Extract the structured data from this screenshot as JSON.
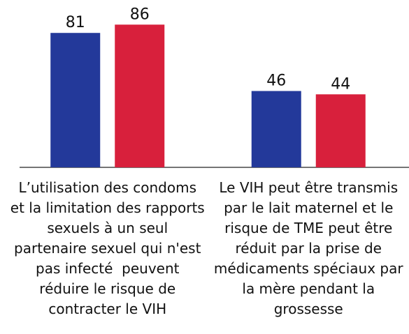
{
  "chart_data": {
    "type": "bar",
    "categories": [
      "L’utilisation des condoms et la limitation des rapports sexuels à un seul partenaire sexuel qui n'est pas infecté  peuvent réduire le risque de contracter le VIH",
      "Le VIH peut être transmis par le lait maternel et le risque de TME peut être réduit par la prise de médicaments spéciaux par la mère pendant la grossesse"
    ],
    "series": [
      {
        "color": "#23399a",
        "values": [
          81,
          46
        ]
      },
      {
        "color": "#d8203c",
        "values": [
          86,
          44
        ]
      }
    ],
    "ylim": [
      0,
      100
    ]
  }
}
